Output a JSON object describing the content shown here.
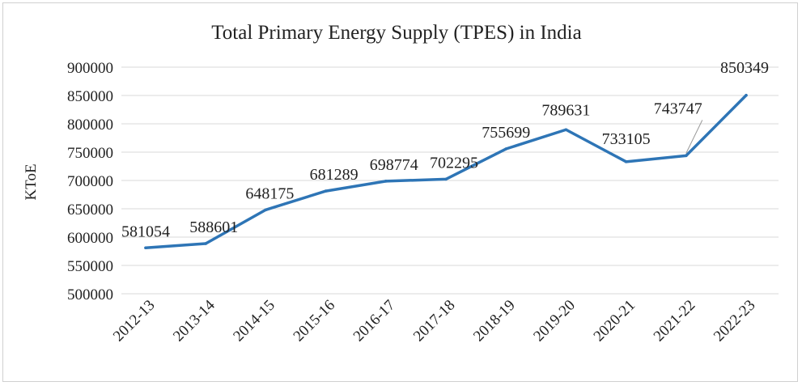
{
  "chart_data": {
    "type": "line",
    "title": "Total Primary Energy Supply (TPES) in India",
    "xlabel": "",
    "ylabel": "KToE",
    "ylim": [
      500000,
      900000
    ],
    "yticks": [
      500000,
      550000,
      600000,
      650000,
      700000,
      750000,
      800000,
      850000,
      900000
    ],
    "categories": [
      "2012-13",
      "2013-14",
      "2014-15",
      "2015-16",
      "2016-17",
      "2017-18",
      "2018-19",
      "2019-20",
      "2020-21",
      "2021-22",
      "2022-23"
    ],
    "series": [
      {
        "name": "TPES",
        "color": "#2e75b6",
        "values": [
          581054,
          588601,
          648175,
          681289,
          698774,
          702295,
          755699,
          789631,
          733105,
          743747,
          850349
        ]
      }
    ],
    "grid": true
  }
}
